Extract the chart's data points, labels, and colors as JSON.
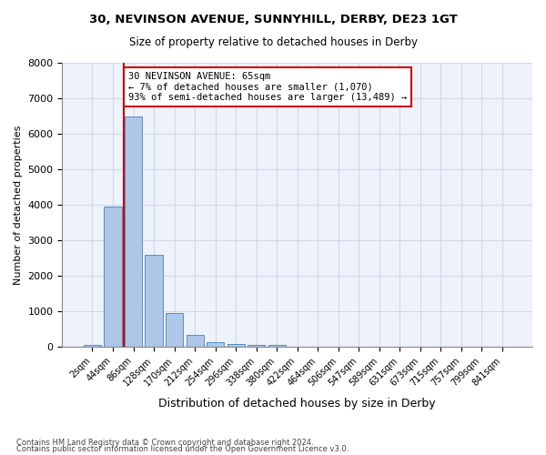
{
  "title1": "30, NEVINSON AVENUE, SUNNYHILL, DERBY, DE23 1GT",
  "title2": "Size of property relative to detached houses in Derby",
  "xlabel": "Distribution of detached houses by size in Derby",
  "ylabel": "Number of detached properties",
  "bin_labels": [
    "2sqm",
    "44sqm",
    "86sqm",
    "128sqm",
    "170sqm",
    "212sqm",
    "254sqm",
    "296sqm",
    "338sqm",
    "380sqm",
    "422sqm",
    "464sqm",
    "506sqm",
    "547sqm",
    "589sqm",
    "631sqm",
    "673sqm",
    "715sqm",
    "757sqm",
    "799sqm",
    "841sqm"
  ],
  "bar_values": [
    50,
    3950,
    6500,
    2600,
    950,
    350,
    130,
    75,
    50,
    60,
    0,
    0,
    0,
    0,
    0,
    0,
    0,
    0,
    0,
    0,
    0
  ],
  "bar_color": "#aec6e8",
  "bar_edge_color": "#5a8fc0",
  "grid_color": "#d0d8e8",
  "background_color": "#eef2fa",
  "annotation_text": "30 NEVINSON AVENUE: 65sqm\n← 7% of detached houses are smaller (1,070)\n93% of semi-detached houses are larger (13,489) →",
  "annotation_box_color": "#cc0000",
  "vline_x": 1.55,
  "vline_color": "#cc0000",
  "ylim": [
    0,
    8000
  ],
  "yticks": [
    0,
    1000,
    2000,
    3000,
    4000,
    5000,
    6000,
    7000,
    8000
  ],
  "footer1": "Contains HM Land Registry data © Crown copyright and database right 2024.",
  "footer2": "Contains public sector information licensed under the Open Government Licence v3.0."
}
